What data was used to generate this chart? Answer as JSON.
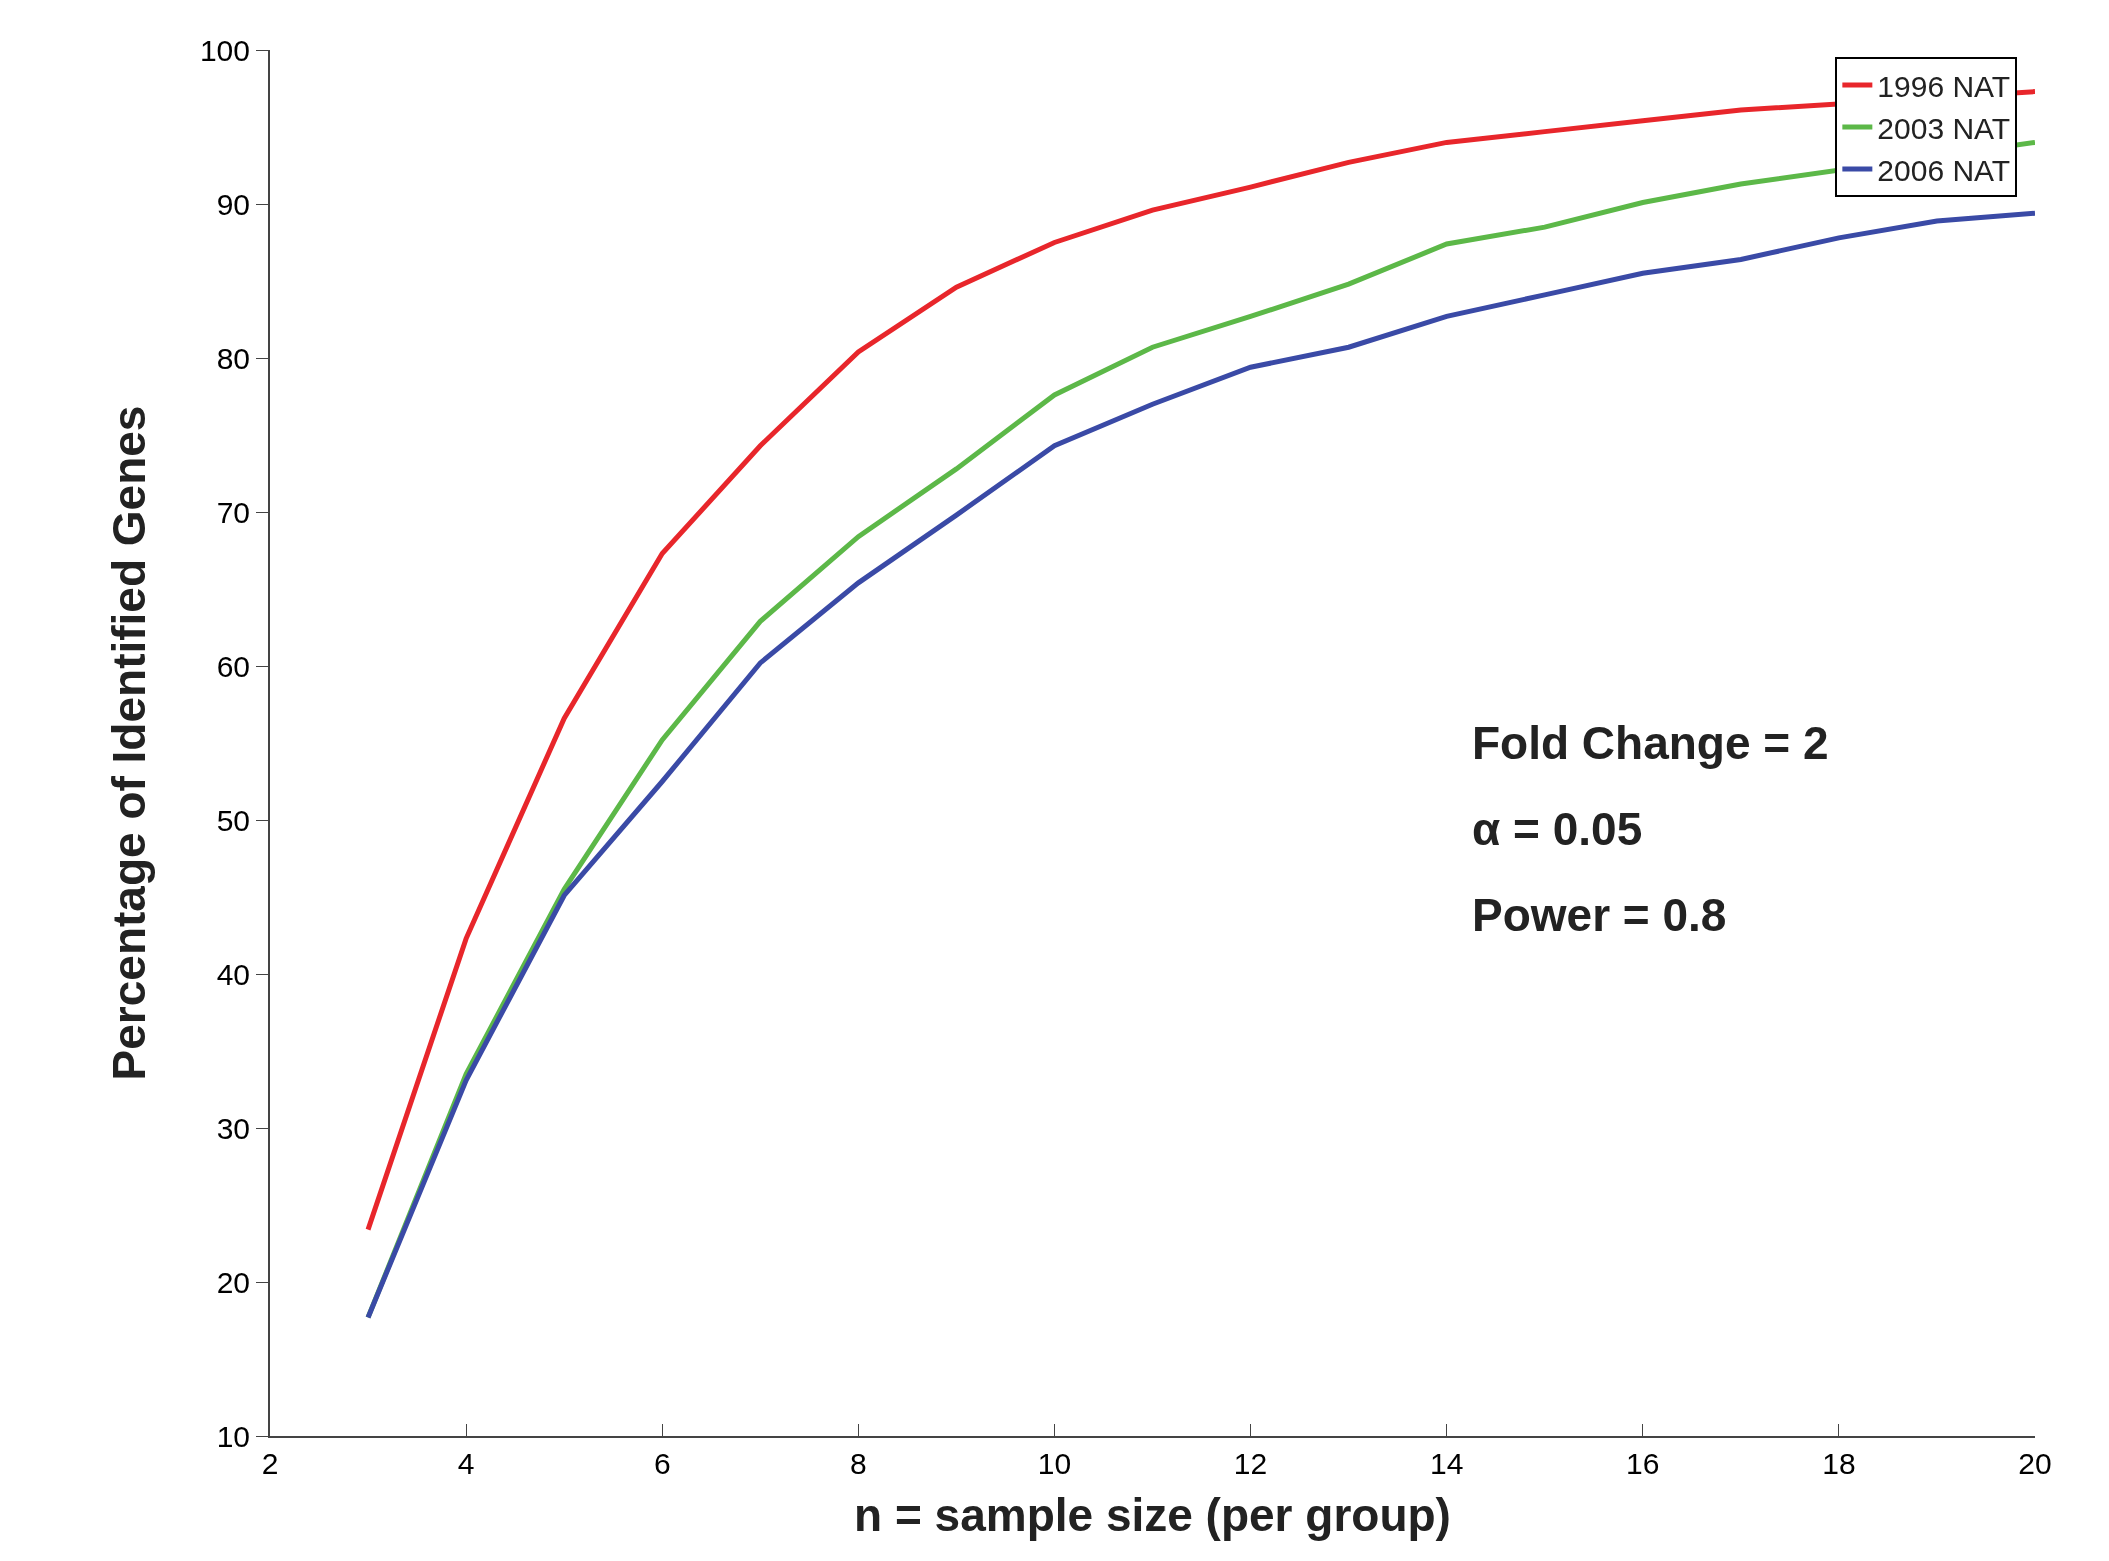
{
  "chart_data": {
    "type": "line",
    "xlabel": "n = sample size (per group)",
    "ylabel": "Percentage of Identified Genes",
    "x": [
      3,
      4,
      5,
      6,
      7,
      8,
      9,
      10,
      11,
      12,
      13,
      14,
      15,
      16,
      17,
      18,
      19,
      20
    ],
    "series": [
      {
        "name": "1996 NAT",
        "color": "#e8262b",
        "values": [
          23.4,
          42.3,
          56.6,
          67.3,
          74.3,
          80.4,
          84.6,
          87.5,
          89.6,
          91.1,
          92.7,
          94.0,
          94.7,
          95.4,
          96.1,
          null,
          null,
          97.3
        ]
      },
      {
        "name": "2003 NAT",
        "color": "#5cb848",
        "values": [
          17.7,
          33.5,
          45.5,
          55.2,
          62.9,
          68.4,
          72.8,
          77.6,
          80.7,
          82.7,
          84.8,
          87.4,
          88.5,
          90.1,
          91.3,
          null,
          null,
          94.0
        ]
      },
      {
        "name": "2006 NAT",
        "color": "#3a4aa6",
        "values": [
          17.7,
          33.1,
          45.1,
          52.5,
          60.2,
          65.4,
          69.8,
          74.3,
          77.0,
          79.4,
          80.7,
          82.7,
          84.1,
          85.5,
          86.4,
          87.8,
          88.9,
          89.4
        ]
      }
    ],
    "xlim": [
      2,
      20
    ],
    "xticks": [
      2,
      4,
      6,
      8,
      10,
      12,
      14,
      16,
      18,
      20
    ],
    "ylim": [
      10,
      100
    ],
    "yticks": [
      10,
      20,
      30,
      40,
      50,
      60,
      70,
      80,
      90,
      100
    ],
    "grid": false,
    "legend": "top right",
    "marker": "none",
    "line_style": "solid",
    "annotations": [
      "Fold Change = 2",
      "α = 0.05",
      "Power = 0.8"
    ]
  }
}
